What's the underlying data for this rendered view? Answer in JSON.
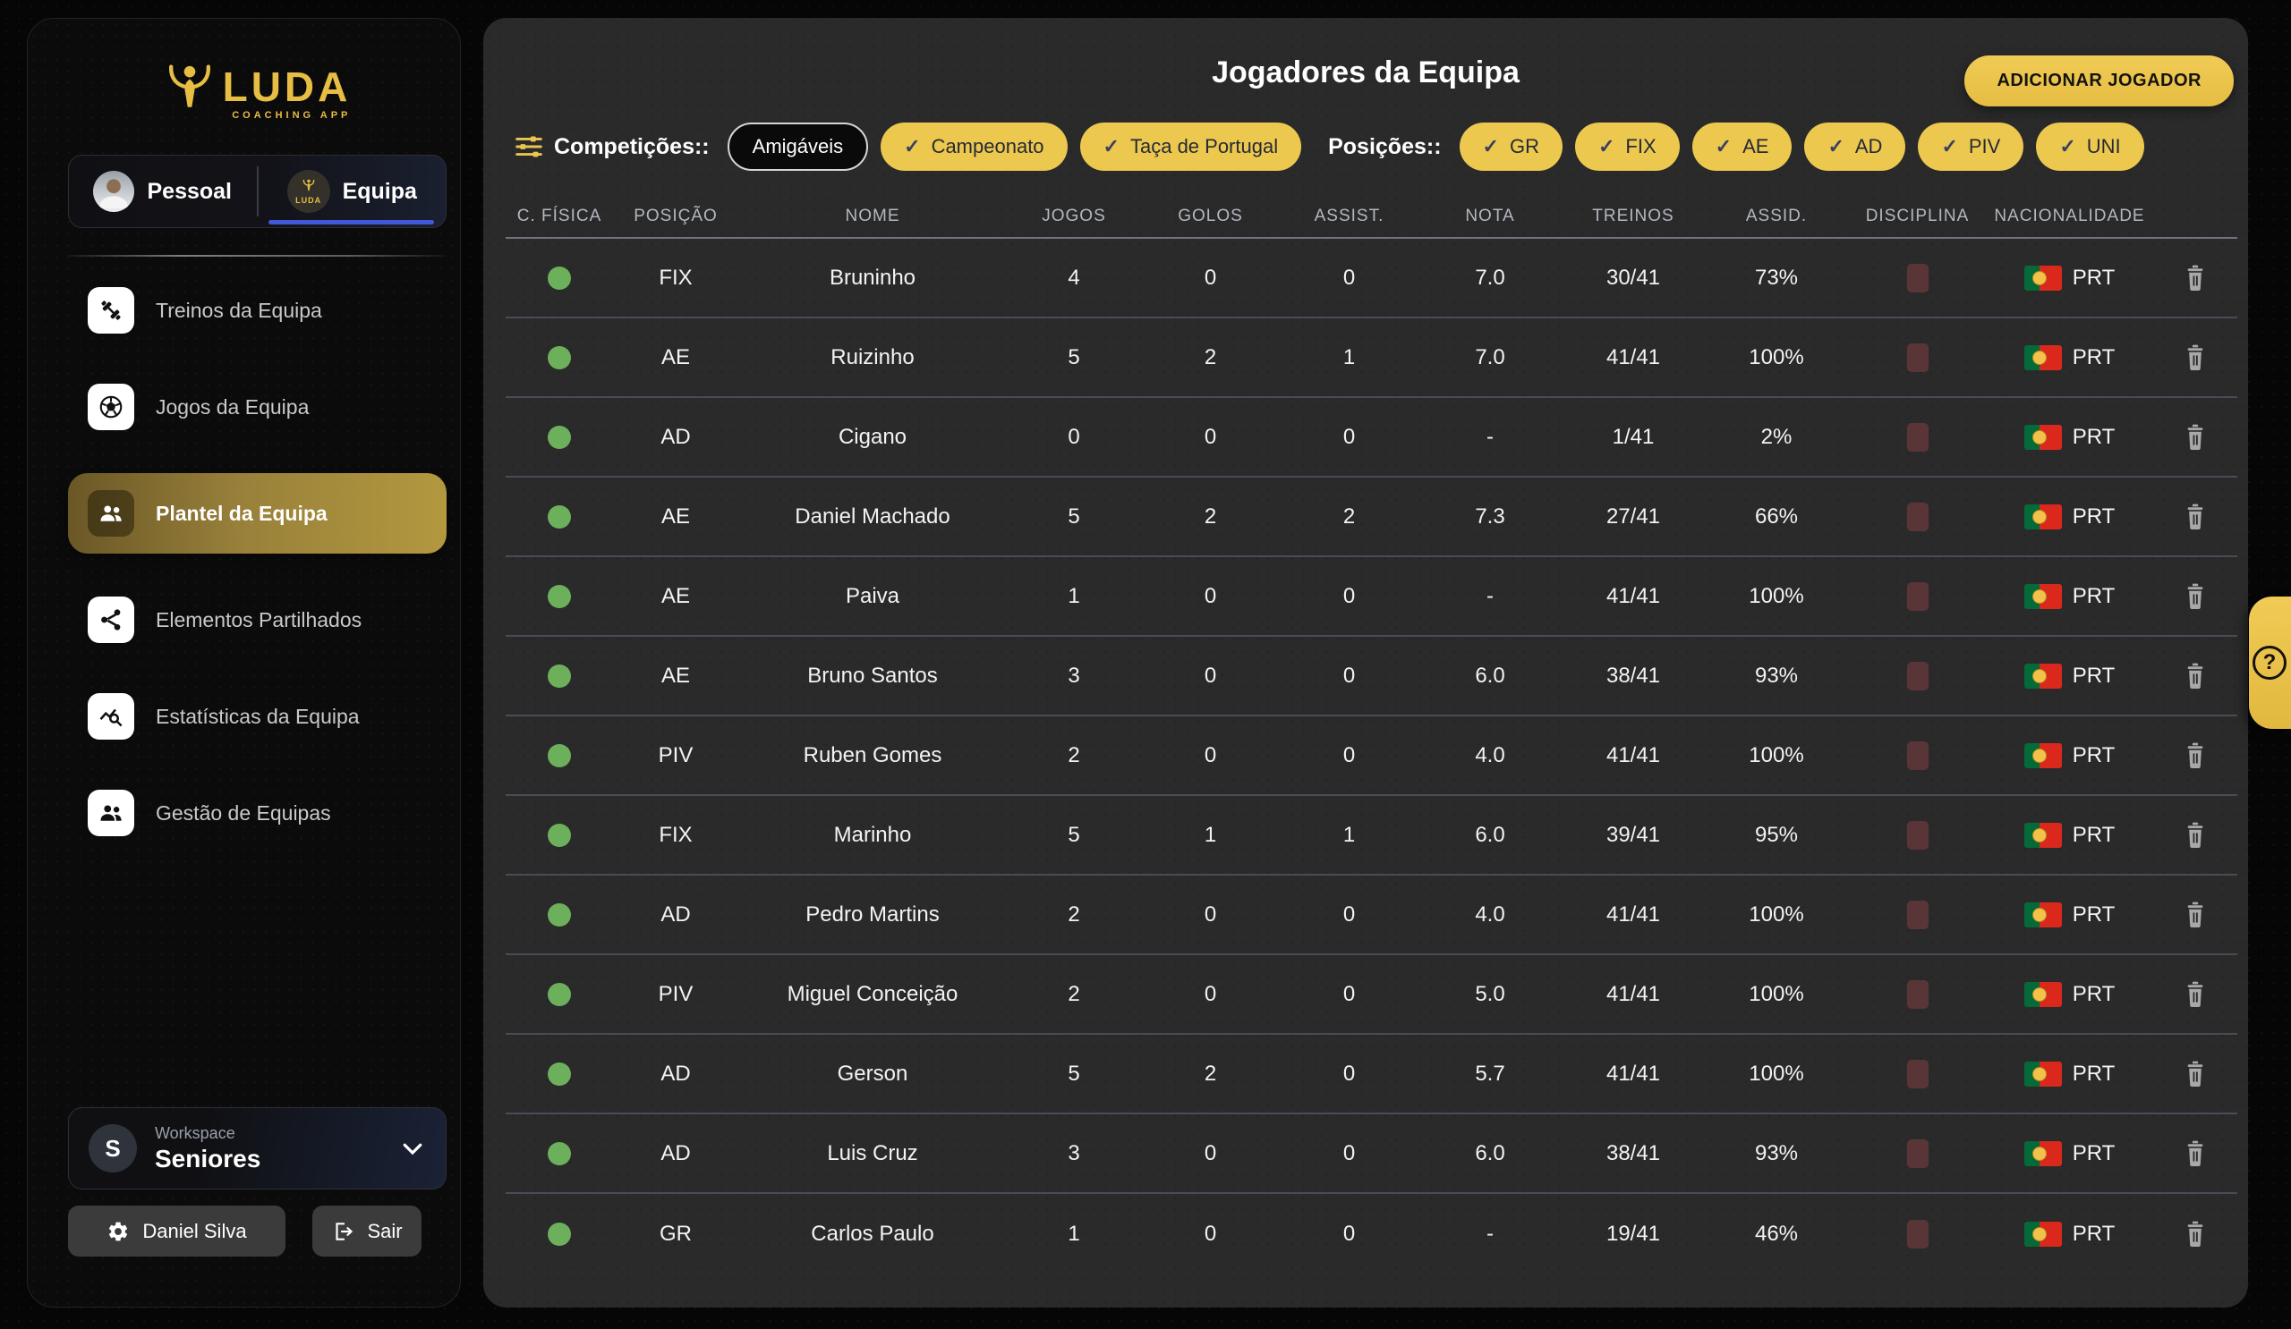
{
  "app": {
    "brand": "LUDA",
    "brand_sub": "COACHING APP"
  },
  "sidebar": {
    "tabs": [
      {
        "label": "Pessoal",
        "active": false
      },
      {
        "label": "Equipa",
        "active": true
      }
    ],
    "items": [
      {
        "label": "Treinos da Equipa",
        "active": false
      },
      {
        "label": "Jogos da Equipa",
        "active": false
      },
      {
        "label": "Plantel da Equipa",
        "active": true
      },
      {
        "label": "Elementos Partilhados",
        "active": false
      },
      {
        "label": "Estatísticas da Equipa",
        "active": false
      },
      {
        "label": "Gestão de Equipas",
        "active": false
      }
    ],
    "workspace": {
      "label": "Workspace",
      "name": "Seniores",
      "initial": "S"
    },
    "user_button": "Daniel Silva",
    "logout_button": "Sair"
  },
  "main": {
    "title": "Jogadores da Equipa",
    "add_button": "ADICIONAR JOGADOR",
    "help": "?",
    "filters": {
      "competitions_label": "Competições::",
      "competitions": [
        {
          "label": "Amigáveis",
          "checked": false
        },
        {
          "label": "Campeonato",
          "checked": true
        },
        {
          "label": "Taça de Portugal",
          "checked": true
        }
      ],
      "positions_label": "Posições::",
      "positions": [
        {
          "label": "GR",
          "checked": true
        },
        {
          "label": "FIX",
          "checked": true
        },
        {
          "label": "AE",
          "checked": true
        },
        {
          "label": "AD",
          "checked": true
        },
        {
          "label": "PIV",
          "checked": true
        },
        {
          "label": "UNI",
          "checked": true
        }
      ]
    },
    "table": {
      "columns": [
        "C. FÍSICA",
        "POSIÇÃO",
        "NOME",
        "JOGOS",
        "GOLOS",
        "ASSIST.",
        "NOTA",
        "TREINOS",
        "ASSID.",
        "DISCIPLINA",
        "NACIONALIDADE"
      ],
      "rows": [
        {
          "condition": "green",
          "position": "FIX",
          "name": "Bruninho",
          "jogos": "4",
          "golos": "0",
          "assist": "0",
          "nota": "7.0",
          "treinos": "30/41",
          "assid": "73%",
          "nationality": "PRT"
        },
        {
          "condition": "green",
          "position": "AE",
          "name": "Ruizinho",
          "jogos": "5",
          "golos": "2",
          "assist": "1",
          "nota": "7.0",
          "treinos": "41/41",
          "assid": "100%",
          "nationality": "PRT"
        },
        {
          "condition": "green",
          "position": "AD",
          "name": "Cigano",
          "jogos": "0",
          "golos": "0",
          "assist": "0",
          "nota": "-",
          "treinos": "1/41",
          "assid": "2%",
          "nationality": "PRT"
        },
        {
          "condition": "green",
          "position": "AE",
          "name": "Daniel Machado",
          "jogos": "5",
          "golos": "2",
          "assist": "2",
          "nota": "7.3",
          "treinos": "27/41",
          "assid": "66%",
          "nationality": "PRT"
        },
        {
          "condition": "green",
          "position": "AE",
          "name": "Paiva",
          "jogos": "1",
          "golos": "0",
          "assist": "0",
          "nota": "-",
          "treinos": "41/41",
          "assid": "100%",
          "nationality": "PRT"
        },
        {
          "condition": "green",
          "position": "AE",
          "name": "Bruno Santos",
          "jogos": "3",
          "golos": "0",
          "assist": "0",
          "nota": "6.0",
          "treinos": "38/41",
          "assid": "93%",
          "nationality": "PRT"
        },
        {
          "condition": "green",
          "position": "PIV",
          "name": "Ruben Gomes",
          "jogos": "2",
          "golos": "0",
          "assist": "0",
          "nota": "4.0",
          "treinos": "41/41",
          "assid": "100%",
          "nationality": "PRT"
        },
        {
          "condition": "green",
          "position": "FIX",
          "name": "Marinho",
          "jogos": "5",
          "golos": "1",
          "assist": "1",
          "nota": "6.0",
          "treinos": "39/41",
          "assid": "95%",
          "nationality": "PRT"
        },
        {
          "condition": "green",
          "position": "AD",
          "name": "Pedro Martins",
          "jogos": "2",
          "golos": "0",
          "assist": "0",
          "nota": "4.0",
          "treinos": "41/41",
          "assid": "100%",
          "nationality": "PRT"
        },
        {
          "condition": "green",
          "position": "PIV",
          "name": "Miguel Conceição",
          "jogos": "2",
          "golos": "0",
          "assist": "0",
          "nota": "5.0",
          "treinos": "41/41",
          "assid": "100%",
          "nationality": "PRT"
        },
        {
          "condition": "green",
          "position": "AD",
          "name": "Gerson",
          "jogos": "5",
          "golos": "2",
          "assist": "0",
          "nota": "5.7",
          "treinos": "41/41",
          "assid": "100%",
          "nationality": "PRT"
        },
        {
          "condition": "green",
          "position": "AD",
          "name": "Luis Cruz",
          "jogos": "3",
          "golos": "0",
          "assist": "0",
          "nota": "6.0",
          "treinos": "38/41",
          "assid": "93%",
          "nationality": "PRT"
        },
        {
          "condition": "green",
          "position": "GR",
          "name": "Carlos Paulo",
          "jogos": "1",
          "golos": "0",
          "assist": "0",
          "nota": "-",
          "treinos": "19/41",
          "assid": "46%",
          "nationality": "PRT"
        }
      ]
    }
  },
  "colors": {
    "accent_gold": "#ECC84F",
    "active_nav_gradient": [
      "#6A5726",
      "#B3983F"
    ],
    "condition_green": "#6CB05C",
    "discipline_card": "#5A3538",
    "tab_underline_blue": "#4159D8",
    "flag_green": "#046A38",
    "flag_red": "#DA291C",
    "panel_bg": "#2A2A2A",
    "sidebar_bg": "#0B0B0B"
  }
}
